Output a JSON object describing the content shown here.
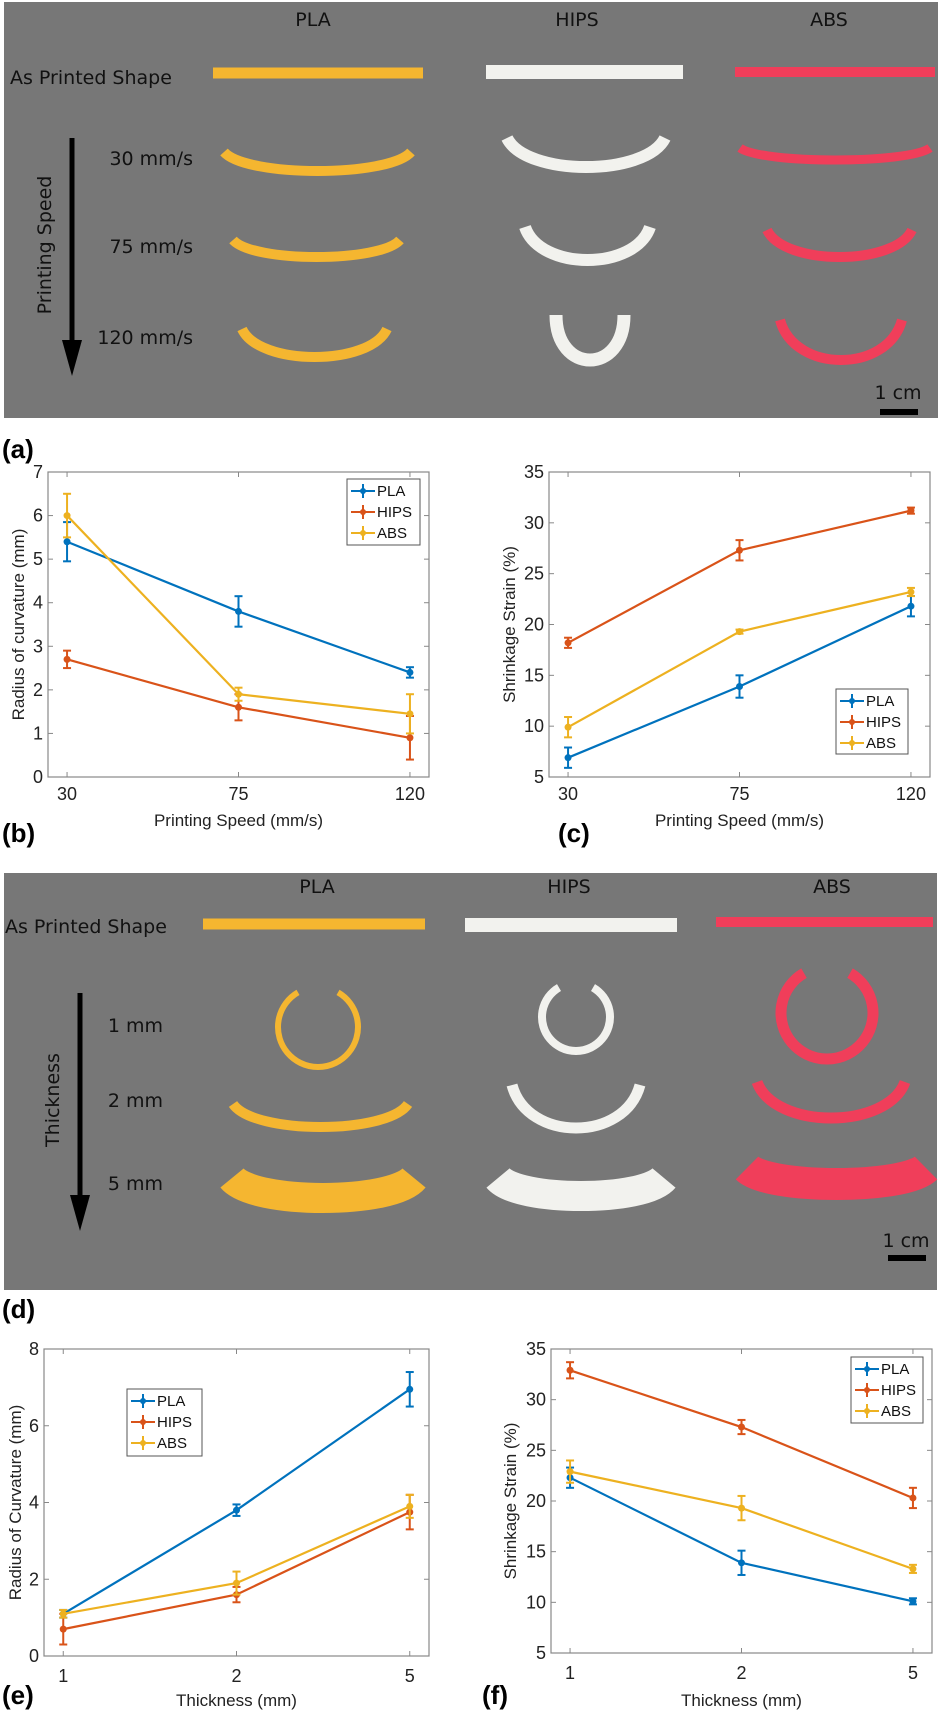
{
  "photos": {
    "a": {
      "panel_label": "(a)",
      "columns": [
        "PLA",
        "HIPS",
        "ABS"
      ],
      "reference_row": "As Printed Shape",
      "axis_title": "Printing Speed",
      "rows": [
        "30 mm/s",
        "75 mm/s",
        "120 mm/s"
      ],
      "scale_bar": "1 cm"
    },
    "d": {
      "panel_label": "(d)",
      "columns": [
        "PLA",
        "HIPS",
        "ABS"
      ],
      "reference_row": "As Printed Shape",
      "axis_title": "Thickness",
      "rows": [
        "1 mm",
        "2 mm",
        "5 mm"
      ],
      "scale_bar": "1 cm"
    },
    "specimen_colors": {
      "PLA": "#f5b630",
      "HIPS": "#f2f2ee",
      "ABS": "#f03e5a"
    },
    "background": "#777777"
  },
  "chart_data": [
    {
      "id": "b",
      "panel_label": "(b)",
      "type": "line",
      "xlabel": "Printing Speed (mm/s)",
      "ylabel": "Radius of curvature (mm)",
      "categories": [
        "30",
        "75",
        "120"
      ],
      "ylim": [
        0,
        7
      ],
      "yticks": [
        0,
        1,
        2,
        3,
        4,
        5,
        6,
        7
      ],
      "legend": "top-right",
      "grid": false,
      "series": [
        {
          "name": "PLA",
          "color": "#0072BD",
          "values": [
            5.4,
            3.8,
            2.4
          ],
          "errors": [
            0.45,
            0.35,
            0.12
          ]
        },
        {
          "name": "HIPS",
          "color": "#D95319",
          "values": [
            2.7,
            1.6,
            0.9
          ],
          "errors": [
            0.2,
            0.3,
            0.5
          ]
        },
        {
          "name": "ABS",
          "color": "#EDB120",
          "values": [
            6.0,
            1.9,
            1.45
          ],
          "errors": [
            0.5,
            0.15,
            0.45
          ]
        }
      ]
    },
    {
      "id": "c",
      "panel_label": "(c)",
      "type": "line",
      "xlabel": "Printing Speed (mm/s)",
      "ylabel": "Shrinkage Strain (%)",
      "categories": [
        "30",
        "75",
        "120"
      ],
      "ylim": [
        5,
        35
      ],
      "yticks": [
        5,
        10,
        15,
        20,
        25,
        30,
        35
      ],
      "legend": "bottom-right",
      "grid": false,
      "series": [
        {
          "name": "PLA",
          "color": "#0072BD",
          "values": [
            6.9,
            13.9,
            21.8
          ],
          "errors": [
            1.0,
            1.1,
            1.0
          ]
        },
        {
          "name": "HIPS",
          "color": "#D95319",
          "values": [
            18.2,
            27.3,
            31.2
          ],
          "errors": [
            0.5,
            1.0,
            0.3
          ]
        },
        {
          "name": "ABS",
          "color": "#EDB120",
          "values": [
            9.9,
            19.3,
            23.2
          ],
          "errors": [
            1.0,
            0.2,
            0.4
          ]
        }
      ]
    },
    {
      "id": "e",
      "panel_label": "(e)",
      "type": "line",
      "xlabel": "Thickness (mm)",
      "ylabel": "Radius of Curvature (mm)",
      "categories": [
        "1",
        "2",
        "5"
      ],
      "ylim": [
        0,
        8
      ],
      "yticks": [
        0,
        2,
        4,
        6,
        8
      ],
      "legend": "top-left",
      "grid": false,
      "series": [
        {
          "name": "PLA",
          "color": "#0072BD",
          "values": [
            1.1,
            3.8,
            6.95
          ],
          "errors": [
            0.1,
            0.15,
            0.45
          ]
        },
        {
          "name": "HIPS",
          "color": "#D95319",
          "values": [
            0.7,
            1.6,
            3.75
          ],
          "errors": [
            0.4,
            0.2,
            0.45
          ]
        },
        {
          "name": "ABS",
          "color": "#EDB120",
          "values": [
            1.1,
            1.9,
            3.9
          ],
          "errors": [
            0.1,
            0.3,
            0.3
          ]
        }
      ]
    },
    {
      "id": "f",
      "panel_label": "(f)",
      "type": "line",
      "xlabel": "Thickness (mm)",
      "ylabel": "Shrinkage Strain (%)",
      "categories": [
        "1",
        "2",
        "5"
      ],
      "ylim": [
        5,
        35
      ],
      "yticks": [
        5,
        10,
        15,
        20,
        25,
        30,
        35
      ],
      "legend": "top-right",
      "grid": false,
      "series": [
        {
          "name": "PLA",
          "color": "#0072BD",
          "values": [
            22.3,
            13.9,
            10.1
          ],
          "errors": [
            1.0,
            1.2,
            0.3
          ]
        },
        {
          "name": "HIPS",
          "color": "#D95319",
          "values": [
            32.9,
            27.3,
            20.3
          ],
          "errors": [
            0.8,
            0.7,
            1.0
          ]
        },
        {
          "name": "ABS",
          "color": "#EDB120",
          "values": [
            22.9,
            19.3,
            13.3
          ],
          "errors": [
            1.1,
            1.2,
            0.4
          ]
        }
      ]
    }
  ]
}
